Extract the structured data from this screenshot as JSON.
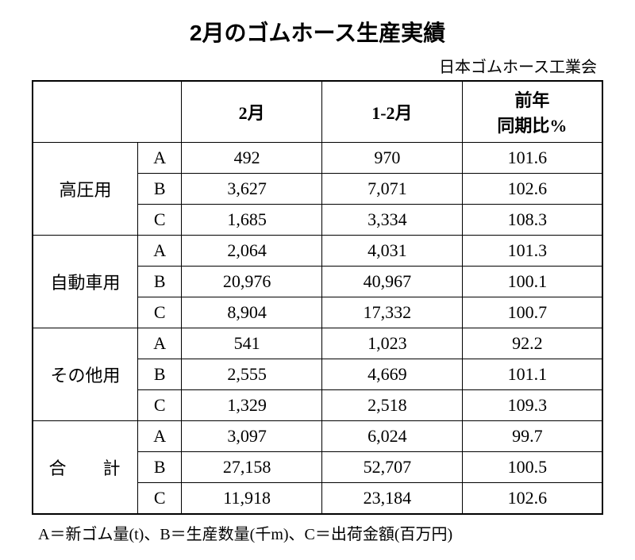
{
  "title": "2月のゴムホース生産実績",
  "subtitle": "日本ゴムホース工業会",
  "table": {
    "type": "table",
    "background_color": "#ffffff",
    "border_color": "#000000",
    "text_color": "#000000",
    "font_size": 22,
    "title_fontsize": 28,
    "subtitle_fontsize": 20,
    "footnote_fontsize": 20,
    "columns": {
      "category": "",
      "metric": "",
      "feb": "2月",
      "jan_feb": "1-2月",
      "yoy": "前年\n同期比%"
    },
    "yoy_line1": "前年",
    "yoy_line2": "同期比%",
    "groups": [
      {
        "name": "高圧用",
        "rows": [
          {
            "metric": "A",
            "feb": "492",
            "jan_feb": "970",
            "yoy": "101.6"
          },
          {
            "metric": "B",
            "feb": "3,627",
            "jan_feb": "7,071",
            "yoy": "102.6"
          },
          {
            "metric": "C",
            "feb": "1,685",
            "jan_feb": "3,334",
            "yoy": "108.3"
          }
        ]
      },
      {
        "name": "自動車用",
        "rows": [
          {
            "metric": "A",
            "feb": "2,064",
            "jan_feb": "4,031",
            "yoy": "101.3"
          },
          {
            "metric": "B",
            "feb": "20,976",
            "jan_feb": "40,967",
            "yoy": "100.1"
          },
          {
            "metric": "C",
            "feb": "8,904",
            "jan_feb": "17,332",
            "yoy": "100.7"
          }
        ]
      },
      {
        "name": "その他用",
        "rows": [
          {
            "metric": "A",
            "feb": "541",
            "jan_feb": "1,023",
            "yoy": "92.2"
          },
          {
            "metric": "B",
            "feb": "2,555",
            "jan_feb": "4,669",
            "yoy": "101.1"
          },
          {
            "metric": "C",
            "feb": "1,329",
            "jan_feb": "2,518",
            "yoy": "109.3"
          }
        ]
      },
      {
        "name": "合　計",
        "rows": [
          {
            "metric": "A",
            "feb": "3,097",
            "jan_feb": "6,024",
            "yoy": "99.7"
          },
          {
            "metric": "B",
            "feb": "27,158",
            "jan_feb": "52,707",
            "yoy": "100.5"
          },
          {
            "metric": "C",
            "feb": "11,918",
            "jan_feb": "23,184",
            "yoy": "102.6"
          }
        ]
      }
    ]
  },
  "footnote": "A＝新ゴム量(t)、B＝生産数量(千m)、C＝出荷金額(百万円)"
}
